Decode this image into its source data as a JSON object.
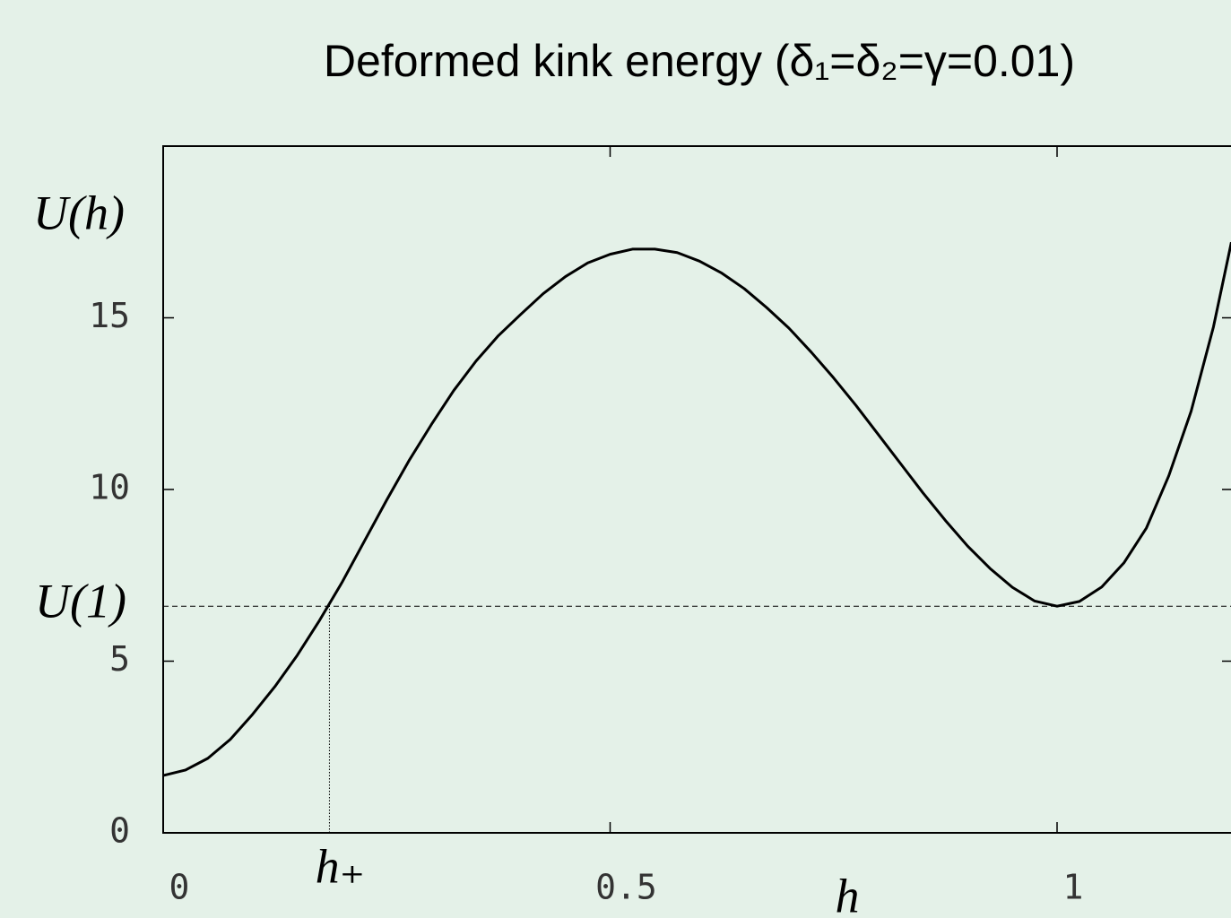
{
  "chart_data": {
    "type": "line",
    "title": "Deformed kink energy (δ₁=δ₂=γ=0.01)",
    "x_label": "h",
    "y_label": "U(h)",
    "x": [
      0,
      0.025,
      0.05,
      0.075,
      0.1,
      0.125,
      0.15,
      0.175,
      0.2,
      0.225,
      0.25,
      0.275,
      0.3,
      0.325,
      0.35,
      0.375,
      0.4,
      0.425,
      0.45,
      0.475,
      0.5,
      0.525,
      0.55,
      0.575,
      0.6,
      0.625,
      0.65,
      0.675,
      0.7,
      0.725,
      0.75,
      0.775,
      0.8,
      0.825,
      0.85,
      0.875,
      0.9,
      0.925,
      0.95,
      0.975,
      1.0,
      1.025,
      1.05,
      1.075,
      1.1,
      1.125,
      1.15,
      1.175,
      1.195
    ],
    "series": [
      {
        "name": "U(h)",
        "color": "#000000",
        "values": [
          1.67,
          1.83,
          2.17,
          2.72,
          3.45,
          4.26,
          5.17,
          6.19,
          7.29,
          8.49,
          9.69,
          10.84,
          11.89,
          12.88,
          13.74,
          14.48,
          15.1,
          15.7,
          16.2,
          16.6,
          16.85,
          17.0,
          17.0,
          16.9,
          16.65,
          16.3,
          15.85,
          15.3,
          14.7,
          14.0,
          13.25,
          12.45,
          11.6,
          10.75,
          9.9,
          9.1,
          8.35,
          7.7,
          7.15,
          6.75,
          6.6,
          6.74,
          7.16,
          7.87,
          8.88,
          10.4,
          12.28,
          14.74,
          17.2
        ]
      }
    ],
    "xlim": [
      0,
      1.2
    ],
    "ylim": [
      0,
      20
    ],
    "xticks": [
      0,
      0.5,
      1
    ],
    "yticks": [
      0,
      5,
      10,
      15
    ],
    "grid": false,
    "annotations": [
      {
        "text": "U(1)",
        "y": 6.6
      },
      {
        "text": "h₊",
        "x": 0.186
      }
    ]
  }
}
